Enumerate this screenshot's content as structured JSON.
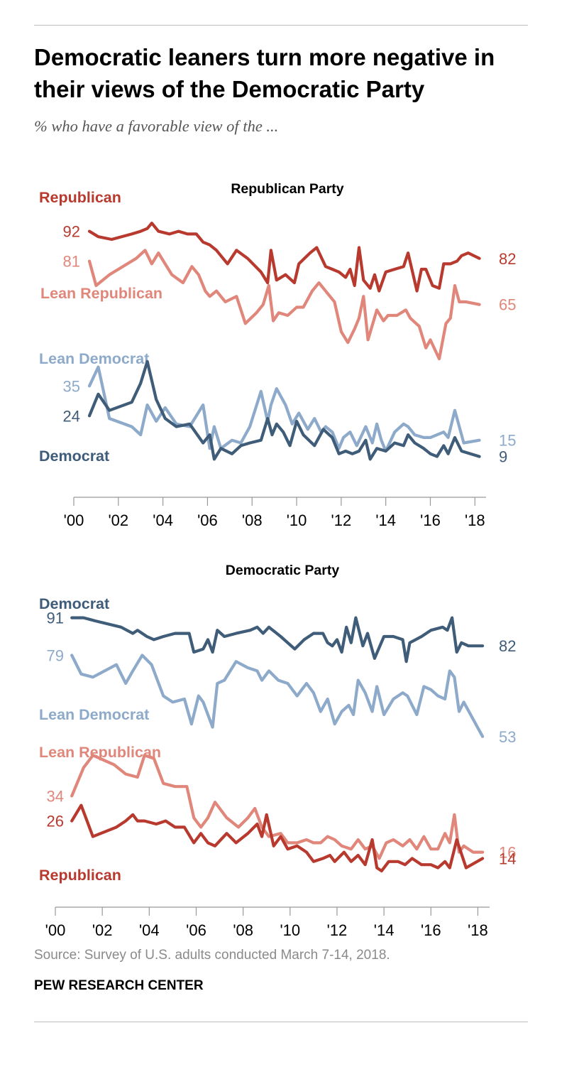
{
  "title": "Democratic leaners turn more negative in their views of the Democratic Party",
  "subtitle": "% who have a favorable view of the ...",
  "source": "Source: Survey of U.S. adults conducted March 7-14, 2018.",
  "brand": "PEW RESEARCH CENTER",
  "colors": {
    "republican": "#B83A2F",
    "lean_republican": "#E0867A",
    "democrat": "#3F5C78",
    "lean_democrat": "#8EAACA",
    "axis": "#999999"
  },
  "chart_data": [
    {
      "type": "line",
      "title": "Republican Party",
      "xlabel": "",
      "ylabel": "",
      "xlim": [
        2000,
        2018.5
      ],
      "ylim": [
        0,
        100
      ],
      "x_ticks": [
        2000,
        2002,
        2004,
        2006,
        2008,
        2010,
        2012,
        2014,
        2016,
        2018
      ],
      "x_tick_labels": [
        "'00",
        "'02",
        "'04",
        "'06",
        "'08",
        "'10",
        "'12",
        "'14",
        "'16",
        "'18"
      ],
      "grid": false,
      "legend": "inline series labels",
      "series": [
        {
          "name": "Republican",
          "color_key": "republican",
          "start_label": "92",
          "end_label": "82",
          "x": [
            2000.7,
            2001.1,
            2001.7,
            2002.6,
            2003.0,
            2003.3,
            2003.5,
            2003.8,
            2004.3,
            2004.7,
            2005.1,
            2005.5,
            2005.8,
            2006.1,
            2006.4,
            2006.9,
            2007.3,
            2007.8,
            2008.4,
            2008.7,
            2008.85,
            2009.1,
            2009.5,
            2009.9,
            2010.1,
            2010.6,
            2010.9,
            2011.3,
            2011.6,
            2011.9,
            2012.2,
            2012.4,
            2012.6,
            2012.8,
            2013.0,
            2013.3,
            2013.5,
            2013.7,
            2014.0,
            2014.4,
            2014.8,
            2015.0,
            2015.4,
            2015.6,
            2015.8,
            2016.1,
            2016.4,
            2016.6,
            2016.9,
            2017.2,
            2017.4,
            2017.7,
            2018.2
          ],
          "values": [
            92,
            90,
            89,
            91,
            92,
            93,
            95,
            92,
            91,
            92,
            91,
            91,
            88,
            87,
            85,
            80,
            85,
            82,
            77,
            73,
            85,
            74,
            76,
            73,
            80,
            84,
            86,
            79,
            78,
            77,
            75,
            78,
            72,
            86,
            74,
            71,
            76,
            70,
            77,
            78,
            79,
            84,
            70,
            78,
            78,
            72,
            71,
            80,
            80,
            81,
            83,
            84,
            82
          ]
        },
        {
          "name": "Lean Republican",
          "color_key": "lean_republican",
          "start_label": "81",
          "end_label": "65",
          "x": [
            2000.7,
            2001.0,
            2001.6,
            2002.8,
            2003.2,
            2003.5,
            2003.8,
            2004.4,
            2004.9,
            2005.3,
            2005.6,
            2005.9,
            2006.1,
            2006.4,
            2006.8,
            2007.3,
            2007.7,
            2008.2,
            2008.5,
            2008.75,
            2008.95,
            2009.2,
            2009.6,
            2010.0,
            2010.3,
            2010.7,
            2011.0,
            2011.4,
            2011.7,
            2012.0,
            2012.3,
            2012.6,
            2012.8,
            2013.0,
            2013.2,
            2013.6,
            2013.9,
            2014.1,
            2014.5,
            2014.9,
            2015.1,
            2015.5,
            2015.8,
            2016.0,
            2016.4,
            2016.7,
            2016.9,
            2017.1,
            2017.3,
            2017.6,
            2018.2
          ],
          "values": [
            81,
            72,
            76,
            82,
            85,
            80,
            84,
            76,
            73,
            79,
            76,
            70,
            68,
            70,
            66,
            68,
            58,
            62,
            65,
            72,
            59,
            62,
            61,
            64,
            64,
            70,
            73,
            69,
            66,
            55,
            51,
            56,
            60,
            68,
            52,
            63,
            59,
            61,
            61,
            63,
            60,
            57,
            49,
            52,
            45,
            58,
            60,
            72,
            66,
            66,
            65
          ]
        },
        {
          "name": "Lean Democrat",
          "color_key": "lean_democrat",
          "start_label": "35",
          "end_label": "15",
          "x": [
            2000.7,
            2001.1,
            2001.6,
            2002.6,
            2003.0,
            2003.3,
            2003.7,
            2004.1,
            2004.6,
            2005.2,
            2005.8,
            2006.1,
            2006.3,
            2006.6,
            2007.1,
            2007.5,
            2007.9,
            2008.4,
            2008.7,
            2008.85,
            2009.1,
            2009.5,
            2009.8,
            2010.1,
            2010.5,
            2010.8,
            2011.1,
            2011.3,
            2011.6,
            2011.9,
            2012.1,
            2012.4,
            2012.7,
            2013.1,
            2013.4,
            2013.6,
            2013.8,
            2014.0,
            2014.4,
            2014.8,
            2015.0,
            2015.3,
            2015.7,
            2016.0,
            2016.3,
            2016.6,
            2016.8,
            2017.1,
            2017.5,
            2018.2
          ],
          "values": [
            35,
            42,
            23,
            20,
            17,
            28,
            22,
            27,
            21,
            20,
            28,
            12,
            20,
            12,
            15,
            14,
            20,
            33,
            22,
            28,
            34,
            28,
            21,
            25,
            19,
            23,
            18,
            20,
            18,
            12,
            16,
            18,
            13,
            20,
            14,
            21,
            15,
            11,
            18,
            21,
            20,
            17,
            16,
            16,
            17,
            18,
            16,
            26,
            14,
            15
          ]
        },
        {
          "name": "Democrat",
          "color_key": "democrat",
          "start_label": "24",
          "end_label": "9",
          "x": [
            2000.7,
            2001.1,
            2001.6,
            2002.6,
            2003.0,
            2003.3,
            2003.7,
            2004.1,
            2004.6,
            2005.2,
            2005.8,
            2006.1,
            2006.3,
            2006.6,
            2007.1,
            2007.5,
            2007.9,
            2008.4,
            2008.7,
            2008.9,
            2009.1,
            2009.4,
            2009.7,
            2010.0,
            2010.3,
            2010.8,
            2011.2,
            2011.6,
            2011.9,
            2012.2,
            2012.5,
            2012.8,
            2013.1,
            2013.3,
            2013.6,
            2014.0,
            2014.4,
            2014.8,
            2015.0,
            2015.3,
            2015.7,
            2016.0,
            2016.3,
            2016.6,
            2016.8,
            2017.1,
            2017.4,
            2018.2
          ],
          "values": [
            24,
            32,
            26,
            29,
            36,
            44,
            30,
            23,
            20,
            21,
            14,
            17,
            8,
            12,
            10,
            13,
            14,
            15,
            23,
            17,
            21,
            18,
            13,
            22,
            17,
            13,
            19,
            16,
            10,
            11,
            10,
            11,
            15,
            8,
            12,
            11,
            14,
            13,
            17,
            14,
            12,
            10,
            9,
            13,
            10,
            16,
            11,
            9
          ]
        }
      ]
    },
    {
      "type": "line",
      "title": "Democratic Party",
      "xlabel": "",
      "ylabel": "",
      "xlim": [
        2000,
        2018.5
      ],
      "ylim": [
        0,
        100
      ],
      "x_ticks": [
        2000,
        2002,
        2004,
        2006,
        2008,
        2010,
        2012,
        2014,
        2016,
        2018
      ],
      "x_tick_labels": [
        "'00",
        "'02",
        "'04",
        "'06",
        "'08",
        "'10",
        "'12",
        "'14",
        "'16",
        "'18"
      ],
      "grid": false,
      "legend": "inline series labels",
      "series": [
        {
          "name": "Democrat",
          "color_key": "democrat",
          "start_label": "91",
          "end_label": "82",
          "x": [
            2000.7,
            2001.2,
            2001.7,
            2002.8,
            2003.3,
            2003.5,
            2003.9,
            2004.2,
            2004.6,
            2005.1,
            2005.7,
            2005.9,
            2006.3,
            2006.5,
            2006.7,
            2006.9,
            2007.2,
            2007.7,
            2008.3,
            2008.6,
            2008.85,
            2009.1,
            2009.6,
            2009.9,
            2010.2,
            2010.6,
            2011.0,
            2011.4,
            2011.6,
            2011.8,
            2012.0,
            2012.2,
            2012.4,
            2012.6,
            2012.8,
            2013.1,
            2013.3,
            2013.6,
            2014.0,
            2014.4,
            2014.8,
            2014.95,
            2015.1,
            2015.6,
            2016.0,
            2016.5,
            2016.7,
            2016.9,
            2017.1,
            2017.3,
            2017.6,
            2018.2
          ],
          "values": [
            91,
            91,
            90,
            88,
            86,
            87,
            85,
            84,
            85,
            86,
            86,
            80,
            81,
            84,
            80,
            87,
            85,
            86,
            87,
            88,
            86,
            88,
            85,
            83,
            81,
            84,
            86,
            86,
            83,
            82,
            84,
            80,
            88,
            83,
            91,
            82,
            86,
            78,
            85,
            85,
            84,
            77,
            83,
            85,
            87,
            88,
            87,
            91,
            80,
            83,
            82,
            82
          ]
        },
        {
          "name": "Lean Democrat",
          "color_key": "lean_democrat",
          "start_label": "79",
          "end_label": "53",
          "x": [
            2000.7,
            2001.1,
            2001.6,
            2002.6,
            2003.0,
            2003.3,
            2003.7,
            2004.1,
            2004.6,
            2005.0,
            2005.5,
            2005.8,
            2006.1,
            2006.3,
            2006.7,
            2006.9,
            2007.2,
            2007.7,
            2008.2,
            2008.6,
            2008.8,
            2009.1,
            2009.5,
            2009.9,
            2010.3,
            2010.7,
            2011.0,
            2011.3,
            2011.6,
            2011.9,
            2012.2,
            2012.5,
            2012.7,
            2012.9,
            2013.2,
            2013.5,
            2013.7,
            2014.0,
            2014.4,
            2014.8,
            2015.0,
            2015.4,
            2015.7,
            2016.0,
            2016.3,
            2016.6,
            2016.8,
            2017.0,
            2017.2,
            2017.4,
            2018.2
          ],
          "values": [
            79,
            73,
            72,
            76,
            70,
            74,
            79,
            76,
            66,
            64,
            65,
            57,
            66,
            64,
            56,
            70,
            71,
            77,
            75,
            74,
            71,
            74,
            71,
            70,
            66,
            70,
            67,
            61,
            65,
            57,
            61,
            63,
            60,
            71,
            67,
            61,
            69,
            60,
            65,
            67,
            66,
            60,
            69,
            68,
            66,
            65,
            74,
            72,
            61,
            64,
            53
          ]
        },
        {
          "name": "Lean Republican",
          "color_key": "lean_republican",
          "start_label": "34",
          "end_label": "16",
          "x": [
            2000.7,
            2001.2,
            2001.6,
            2002.5,
            2003.0,
            2003.5,
            2003.8,
            2004.2,
            2004.6,
            2005.1,
            2005.6,
            2005.9,
            2006.2,
            2006.5,
            2006.8,
            2007.3,
            2007.8,
            2008.2,
            2008.5,
            2008.8,
            2009.1,
            2009.6,
            2009.9,
            2010.3,
            2010.7,
            2011.0,
            2011.3,
            2011.6,
            2011.9,
            2012.2,
            2012.6,
            2012.9,
            2013.2,
            2013.5,
            2013.8,
            2014.1,
            2014.4,
            2014.8,
            2015.1,
            2015.4,
            2015.7,
            2016.0,
            2016.3,
            2016.6,
            2016.8,
            2017.0,
            2017.2,
            2017.4,
            2017.8,
            2018.2
          ],
          "values": [
            34,
            43,
            47,
            44,
            41,
            40,
            47,
            46,
            38,
            37,
            37,
            27,
            24,
            27,
            32,
            27,
            24,
            27,
            30,
            24,
            21,
            22,
            19,
            19,
            20,
            19,
            19,
            21,
            20,
            18,
            17,
            20,
            17,
            18,
            14,
            19,
            20,
            18,
            20,
            17,
            21,
            17,
            17,
            22,
            19,
            28,
            16,
            18,
            16,
            16
          ]
        },
        {
          "name": "Republican",
          "color_key": "republican",
          "start_label": "26",
          "end_label": "14",
          "x": [
            2000.7,
            2001.1,
            2001.6,
            2002.6,
            2003.0,
            2003.3,
            2003.5,
            2003.8,
            2004.3,
            2004.7,
            2005.1,
            2005.5,
            2005.9,
            2006.2,
            2006.5,
            2006.8,
            2007.3,
            2007.7,
            2008.2,
            2008.6,
            2008.8,
            2009.0,
            2009.3,
            2009.6,
            2009.9,
            2010.3,
            2010.7,
            2011.0,
            2011.4,
            2011.7,
            2011.9,
            2012.3,
            2012.6,
            2012.9,
            2013.2,
            2013.5,
            2013.7,
            2013.9,
            2014.2,
            2014.6,
            2014.9,
            2015.2,
            2015.6,
            2016.0,
            2016.3,
            2016.6,
            2016.8,
            2017.1,
            2017.5,
            2018.2
          ],
          "values": [
            26,
            31,
            21,
            24,
            26,
            28,
            26,
            26,
            25,
            26,
            24,
            24,
            19,
            22,
            19,
            18,
            22,
            19,
            22,
            25,
            21,
            28,
            18,
            21,
            17,
            18,
            16,
            13,
            14,
            15,
            13,
            16,
            13,
            15,
            12,
            20,
            11,
            10,
            13,
            13,
            12,
            14,
            12,
            12,
            11,
            13,
            11,
            20,
            11,
            14
          ]
        }
      ]
    }
  ]
}
